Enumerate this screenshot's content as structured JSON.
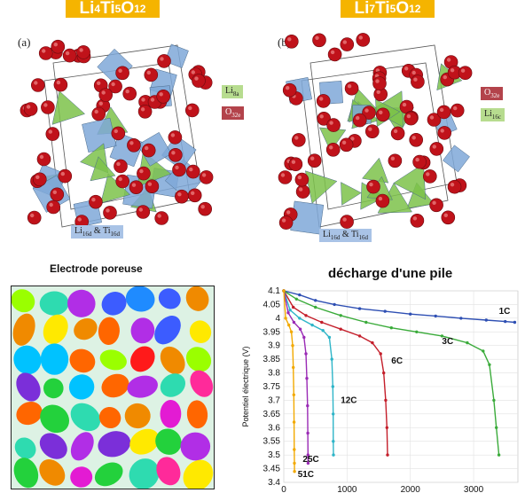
{
  "top_left_label": {
    "base": "Li",
    "s1": "4",
    "m": "Ti",
    "s2": "5",
    "e": "O",
    "s3": "12"
  },
  "top_right_label": {
    "base": "Li",
    "s1": "7",
    "m": "Ti",
    "s2": "5",
    "e": "O",
    "s3": "12"
  },
  "panel_a": {
    "letter": "(a)",
    "tags": [
      {
        "main": "Li",
        "sub": "8a"
      },
      {
        "main": "O",
        "sub": "32e"
      },
      {
        "main": "Li",
        "sub": "16d",
        "main2": " & Ti",
        "sub2": "16d"
      }
    ]
  },
  "panel_b": {
    "letter": "(b)",
    "tags": [
      {
        "main": "O",
        "sub": "32e"
      },
      {
        "main": "Li",
        "sub": "16c"
      },
      {
        "main": "Li",
        "sub": "16d",
        "main2": " & Ti",
        "sub2": "16d"
      }
    ]
  },
  "porous": {
    "title": "Electrode poreuse"
  },
  "colors": {
    "accent_label": "#f5b400",
    "oxygen": "#c0121a",
    "octahedron": "#7fa8d8",
    "tetrahedron": "#7cc24a",
    "tag_li8a": "#b7dc8f",
    "tag_o": "#b3434b",
    "tag_li16": "#a9c3e6"
  },
  "chart_data": {
    "type": "line",
    "title": "décharge d'une pile",
    "xlabel": "",
    "ylabel": "Potentiel électrique (V)",
    "xlim": [
      0,
      3700
    ],
    "ylim": [
      3.4,
      4.1
    ],
    "xticks": [
      0,
      1000,
      2000,
      3000
    ],
    "yticks": [
      3.4,
      3.45,
      3.5,
      3.55,
      3.6,
      3.65,
      3.7,
      3.75,
      3.8,
      3.85,
      3.9,
      3.95,
      4.0,
      4.05,
      4.1
    ],
    "grid": true,
    "series": [
      {
        "name": "1C",
        "color": "#2e4fb3",
        "points": [
          [
            0,
            4.1
          ],
          [
            250,
            4.085
          ],
          [
            500,
            4.065
          ],
          [
            800,
            4.05
          ],
          [
            1200,
            4.035
          ],
          [
            1600,
            4.025
          ],
          [
            2000,
            4.015
          ],
          [
            2400,
            4.008
          ],
          [
            2800,
            4.0
          ],
          [
            3200,
            3.993
          ],
          [
            3500,
            3.988
          ],
          [
            3650,
            3.985
          ]
        ]
      },
      {
        "name": "3C",
        "color": "#3aab3a",
        "points": [
          [
            0,
            4.1
          ],
          [
            200,
            4.07
          ],
          [
            500,
            4.04
          ],
          [
            900,
            4.01
          ],
          [
            1300,
            3.985
          ],
          [
            1700,
            3.965
          ],
          [
            2100,
            3.95
          ],
          [
            2500,
            3.935
          ],
          [
            2900,
            3.91
          ],
          [
            3150,
            3.88
          ],
          [
            3250,
            3.83
          ],
          [
            3320,
            3.7
          ],
          [
            3360,
            3.6
          ],
          [
            3400,
            3.5
          ]
        ]
      },
      {
        "name": "6C",
        "color": "#c41e2a",
        "points": [
          [
            0,
            4.1
          ],
          [
            150,
            4.04
          ],
          [
            350,
            4.01
          ],
          [
            600,
            3.985
          ],
          [
            900,
            3.96
          ],
          [
            1200,
            3.935
          ],
          [
            1400,
            3.91
          ],
          [
            1530,
            3.87
          ],
          [
            1580,
            3.8
          ],
          [
            1610,
            3.7
          ],
          [
            1630,
            3.6
          ],
          [
            1640,
            3.5
          ]
        ]
      },
      {
        "name": "12C",
        "color": "#2eb5c8",
        "points": [
          [
            0,
            4.1
          ],
          [
            100,
            4.03
          ],
          [
            250,
            4.0
          ],
          [
            450,
            3.975
          ],
          [
            620,
            3.955
          ],
          [
            720,
            3.93
          ],
          [
            760,
            3.85
          ],
          [
            775,
            3.75
          ],
          [
            780,
            3.65
          ],
          [
            782,
            3.55
          ],
          [
            785,
            3.5
          ]
        ]
      },
      {
        "name": "25C",
        "color": "#9a2ab5",
        "points": [
          [
            0,
            4.1
          ],
          [
            70,
            4.02
          ],
          [
            160,
            3.985
          ],
          [
            260,
            3.96
          ],
          [
            320,
            3.93
          ],
          [
            350,
            3.87
          ],
          [
            365,
            3.78
          ],
          [
            375,
            3.68
          ],
          [
            380,
            3.58
          ],
          [
            382,
            3.5
          ],
          [
            384,
            3.47
          ]
        ]
      },
      {
        "name": "51C",
        "color": "#f2a900",
        "points": [
          [
            0,
            4.1
          ],
          [
            30,
            4.0
          ],
          [
            80,
            3.975
          ],
          [
            120,
            3.95
          ],
          [
            140,
            3.9
          ],
          [
            150,
            3.82
          ],
          [
            158,
            3.72
          ],
          [
            162,
            3.62
          ],
          [
            166,
            3.52
          ],
          [
            168,
            3.47
          ],
          [
            170,
            3.44
          ]
        ]
      }
    ],
    "series_labels": [
      {
        "name": "1C",
        "x": 3400,
        "y": 4.015
      },
      {
        "name": "3C",
        "x": 2500,
        "y": 3.905
      },
      {
        "name": "6C",
        "x": 1700,
        "y": 3.835
      },
      {
        "name": "12C",
        "x": 900,
        "y": 3.69
      },
      {
        "name": "25C",
        "x": 300,
        "y": 3.475
      },
      {
        "name": "51C",
        "x": 220,
        "y": 3.42
      }
    ]
  }
}
